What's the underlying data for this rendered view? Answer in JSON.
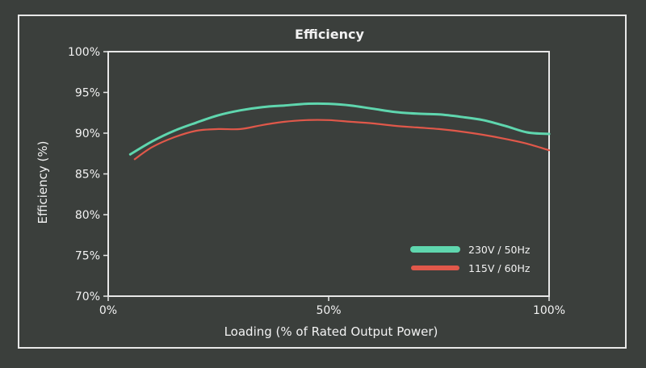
{
  "chart_data": {
    "type": "line",
    "title": "Efficiency",
    "xlabel": "Loading (% of Rated Output Power)",
    "ylabel": "Efficiency (%)",
    "xlim": [
      0,
      100
    ],
    "ylim": [
      70,
      100
    ],
    "x_ticks": [
      {
        "value": 0,
        "label": "0%"
      },
      {
        "value": 50,
        "label": "50%"
      },
      {
        "value": 100,
        "label": "100%"
      }
    ],
    "y_ticks": [
      {
        "value": 70,
        "label": "70%"
      },
      {
        "value": 75,
        "label": "75%"
      },
      {
        "value": 80,
        "label": "80%"
      },
      {
        "value": 85,
        "label": "85%"
      },
      {
        "value": 90,
        "label": "90%"
      },
      {
        "value": 95,
        "label": "95%"
      },
      {
        "value": 100,
        "label": "100%"
      }
    ],
    "grid": false,
    "legend_position": "bottom-right",
    "series": [
      {
        "name": "230V / 50Hz",
        "color": "#5fd6ae",
        "points": [
          [
            5,
            87.4
          ],
          [
            10,
            89.0
          ],
          [
            15,
            90.3
          ],
          [
            20,
            91.3
          ],
          [
            25,
            92.2
          ],
          [
            30,
            92.8
          ],
          [
            35,
            93.2
          ],
          [
            40,
            93.4
          ],
          [
            45,
            93.6
          ],
          [
            50,
            93.6
          ],
          [
            55,
            93.4
          ],
          [
            60,
            93.0
          ],
          [
            65,
            92.6
          ],
          [
            70,
            92.4
          ],
          [
            75,
            92.3
          ],
          [
            80,
            92.0
          ],
          [
            85,
            91.6
          ],
          [
            90,
            90.9
          ],
          [
            95,
            90.1
          ],
          [
            100,
            89.9
          ]
        ]
      },
      {
        "name": "115V / 60Hz",
        "color": "#e0584a",
        "points": [
          [
            6,
            86.8
          ],
          [
            10,
            88.3
          ],
          [
            15,
            89.5
          ],
          [
            20,
            90.3
          ],
          [
            25,
            90.5
          ],
          [
            30,
            90.5
          ],
          [
            35,
            91.0
          ],
          [
            40,
            91.4
          ],
          [
            45,
            91.6
          ],
          [
            50,
            91.6
          ],
          [
            55,
            91.4
          ],
          [
            60,
            91.2
          ],
          [
            65,
            90.9
          ],
          [
            70,
            90.7
          ],
          [
            75,
            90.5
          ],
          [
            80,
            90.2
          ],
          [
            85,
            89.8
          ],
          [
            90,
            89.3
          ],
          [
            95,
            88.7
          ],
          [
            100,
            87.9
          ]
        ]
      }
    ]
  }
}
